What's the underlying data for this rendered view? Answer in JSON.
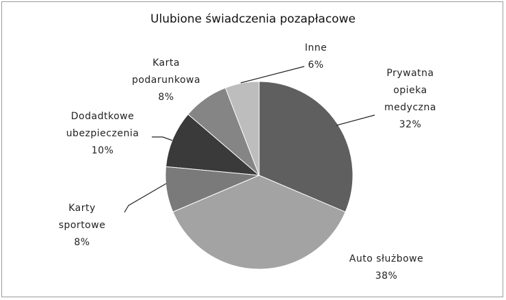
{
  "chart_data": {
    "type": "pie",
    "title": "Ulubione świadczenia pozapłacowe",
    "categories": [
      "Prywatna opieka medyczna",
      "Auto służbowe",
      "Karty sportowe",
      "Dodadtkowe ubezpieczenia",
      "Karta podarunkowa",
      "Inne"
    ],
    "values": [
      32,
      38,
      8,
      10,
      8,
      6
    ],
    "value_labels": [
      "32%",
      "38%",
      "8%",
      "10%",
      "8%",
      "6%"
    ],
    "colors": [
      "#5f5f5f",
      "#a3a3a3",
      "#7a7a7a",
      "#3a3a3a",
      "#858585",
      "#bdbdbd"
    ]
  }
}
